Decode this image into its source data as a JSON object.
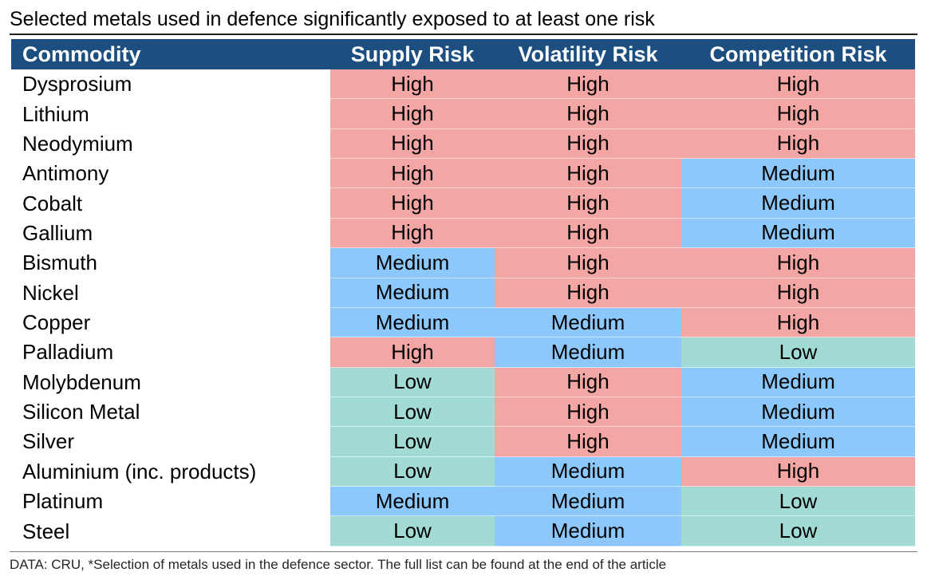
{
  "chart_data": {
    "type": "table",
    "title": "Selected metals used in defence significantly exposed to at least one risk",
    "columns": [
      "Commodity",
      "Supply Risk",
      "Volatility Risk",
      "Competition Risk"
    ],
    "rows": [
      {
        "commodity": "Dysprosium",
        "values": [
          "High",
          "High",
          "High"
        ]
      },
      {
        "commodity": "Lithium",
        "values": [
          "High",
          "High",
          "High"
        ]
      },
      {
        "commodity": "Neodymium",
        "values": [
          "High",
          "High",
          "High"
        ]
      },
      {
        "commodity": "Antimony",
        "values": [
          "High",
          "High",
          "Medium"
        ]
      },
      {
        "commodity": "Cobalt",
        "values": [
          "High",
          "High",
          "Medium"
        ]
      },
      {
        "commodity": "Gallium",
        "values": [
          "High",
          "High",
          "Medium"
        ]
      },
      {
        "commodity": "Bismuth",
        "values": [
          "Medium",
          "High",
          "High"
        ]
      },
      {
        "commodity": "Nickel",
        "values": [
          "Medium",
          "High",
          "High"
        ]
      },
      {
        "commodity": "Copper",
        "values": [
          "Medium",
          "Medium",
          "High"
        ]
      },
      {
        "commodity": "Palladium",
        "values": [
          "High",
          "Medium",
          "Low"
        ]
      },
      {
        "commodity": "Molybdenum",
        "values": [
          "Low",
          "High",
          "Medium"
        ]
      },
      {
        "commodity": "Silicon Metal",
        "values": [
          "Low",
          "High",
          "Medium"
        ]
      },
      {
        "commodity": "Silver",
        "values": [
          "Low",
          "High",
          "Medium"
        ]
      },
      {
        "commodity": "Aluminium (inc. products)",
        "values": [
          "Low",
          "Medium",
          "High"
        ]
      },
      {
        "commodity": "Platinum",
        "values": [
          "Medium",
          "Medium",
          "Low"
        ]
      },
      {
        "commodity": "Steel",
        "values": [
          "Low",
          "Medium",
          "Low"
        ]
      }
    ],
    "level_colors": {
      "High": "#f4a6a4",
      "Medium": "#8cc8fb",
      "Low": "#a1dbd4"
    },
    "header_color": "#1c4e80",
    "footnote": "DATA: CRU, *Selection of metals used in the defence sector. The full list can be found at the end of the article"
  }
}
